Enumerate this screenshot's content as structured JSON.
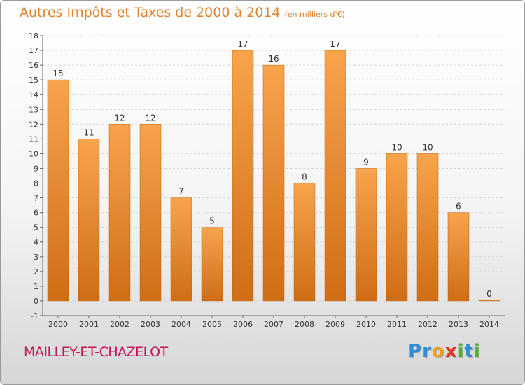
{
  "header": {
    "title": "Autres Impôts et Taxes de 2000 à 2014",
    "subtitle": "(en milliers d'€)"
  },
  "commune": "MAILLEY-ET-CHAZELOT",
  "logo": {
    "letters": [
      "P",
      "r",
      "o",
      "x",
      "i",
      "t",
      "i"
    ],
    "colors": [
      "#2a8fd6",
      "#2a8fd6",
      "#f0a020",
      "#e03a2a",
      "#58b030",
      "#2a8fd6",
      "#58b030"
    ]
  },
  "colors": {
    "bar_top": "#f7a44c",
    "bar_bottom": "#cf6d15",
    "text": "#333333",
    "axis": "#666666",
    "grid": "#d8d8d8"
  },
  "chart_data": {
    "type": "bar",
    "categories": [
      "2000",
      "2001",
      "2002",
      "2003",
      "2004",
      "2005",
      "2006",
      "2007",
      "2008",
      "2009",
      "2010",
      "2011",
      "2012",
      "2013",
      "2014"
    ],
    "values": [
      15,
      11,
      12,
      12,
      7,
      5,
      17,
      16,
      8,
      17,
      9,
      10,
      10,
      6,
      0
    ],
    "ylim": [
      -1,
      18
    ],
    "yticks": [
      -1,
      0,
      1,
      2,
      3,
      4,
      5,
      6,
      7,
      8,
      9,
      10,
      11,
      12,
      13,
      14,
      15,
      16,
      17,
      18
    ],
    "grid": true
  }
}
